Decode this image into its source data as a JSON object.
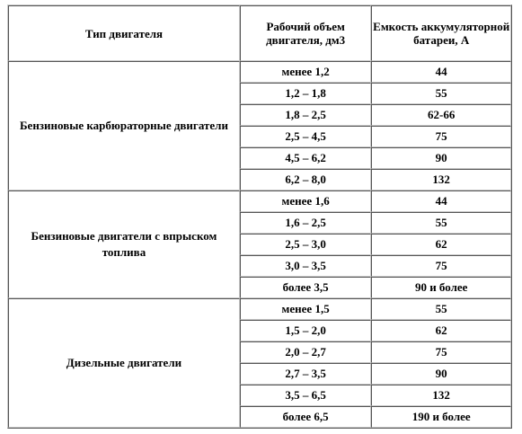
{
  "table": {
    "headers": {
      "type": "Тип двигателя",
      "volume": "Рабочий объем двигателя, дм3",
      "capacity": "Емкость аккумуляторной батареи, А"
    },
    "groups": [
      {
        "engine_type": "Бензиновые карбюраторные двигатели",
        "rows": [
          {
            "volume": "менее 1,2",
            "capacity": "44"
          },
          {
            "volume": "1,2 – 1,8",
            "capacity": "55"
          },
          {
            "volume": "1,8 – 2,5",
            "capacity": "62-66"
          },
          {
            "volume": "2,5 – 4,5",
            "capacity": "75"
          },
          {
            "volume": "4,5 – 6,2",
            "capacity": "90"
          },
          {
            "volume": "6,2 – 8,0",
            "capacity": "132"
          }
        ]
      },
      {
        "engine_type": "Бензиновые двигатели с впрыском топлива",
        "rows": [
          {
            "volume": "менее 1,6",
            "capacity": "44"
          },
          {
            "volume": "1,6 – 2,5",
            "capacity": "55"
          },
          {
            "volume": "2,5 – 3,0",
            "capacity": "62"
          },
          {
            "volume": "3,0 – 3,5",
            "capacity": "75"
          },
          {
            "volume": "более 3,5",
            "capacity": "90 и более"
          }
        ]
      },
      {
        "engine_type": "Дизельные двигатели",
        "rows": [
          {
            "volume": "менее 1,5",
            "capacity": "55"
          },
          {
            "volume": "1,5 – 2,0",
            "capacity": "62"
          },
          {
            "volume": "2,0 – 2,7",
            "capacity": "75"
          },
          {
            "volume": "2,7 – 3,5",
            "capacity": "90"
          },
          {
            "volume": "3,5 – 6,5",
            "capacity": "132"
          },
          {
            "volume": "более 6,5",
            "capacity": "190 и более"
          }
        ]
      }
    ]
  }
}
